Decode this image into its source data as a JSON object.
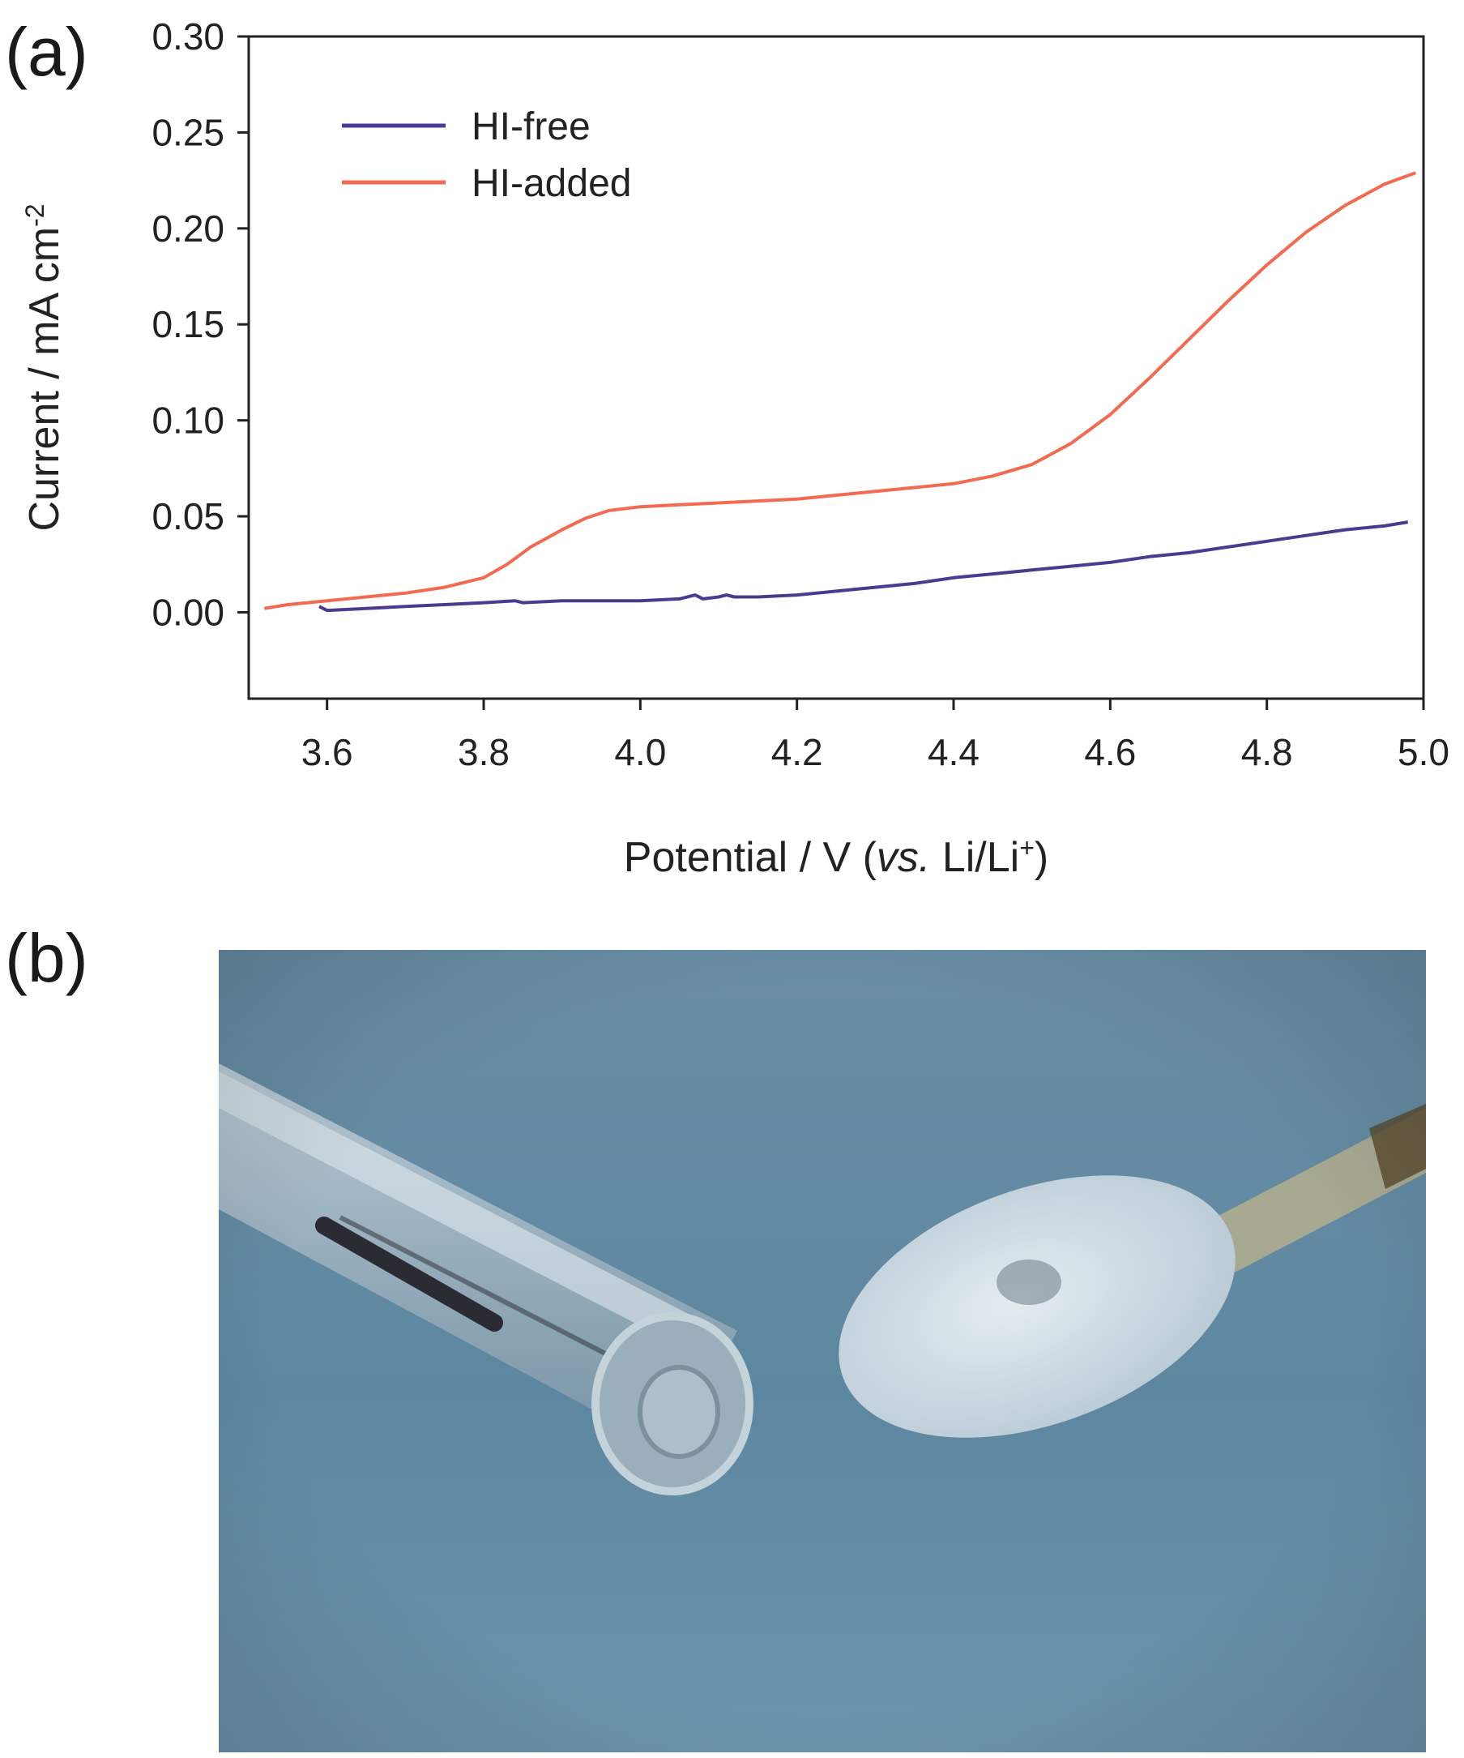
{
  "panels": {
    "a_label": "(a)",
    "b_label": "(b)"
  },
  "chart_data": {
    "type": "line",
    "xlabel_parts": [
      "Potential / V (",
      "vs.",
      " Li/Li",
      "+",
      ")"
    ],
    "ylabel_parts": [
      "Current / mA cm",
      "-2"
    ],
    "xlim": [
      3.5,
      5.0
    ],
    "ylim": [
      -0.045,
      0.3
    ],
    "x_ticks": [
      "3.6",
      "3.8",
      "4.0",
      "4.2",
      "4.4",
      "4.6",
      "4.8",
      "5.0"
    ],
    "x_tick_values": [
      3.6,
      3.8,
      4.0,
      4.2,
      4.4,
      4.6,
      4.8,
      5.0
    ],
    "y_ticks": [
      "0.00",
      "0.05",
      "0.10",
      "0.15",
      "0.20",
      "0.25",
      "0.30"
    ],
    "y_tick_values": [
      0.0,
      0.05,
      0.1,
      0.15,
      0.2,
      0.25,
      0.3
    ],
    "grid": false,
    "legend_position": "top-left",
    "series": [
      {
        "name": "HI-free",
        "color": "#4b3a8f",
        "x": [
          3.59,
          3.6,
          3.65,
          3.7,
          3.75,
          3.8,
          3.84,
          3.85,
          3.9,
          3.95,
          4.0,
          4.05,
          4.07,
          4.08,
          4.1,
          4.11,
          4.12,
          4.15,
          4.2,
          4.25,
          4.3,
          4.35,
          4.4,
          4.45,
          4.5,
          4.55,
          4.6,
          4.65,
          4.7,
          4.75,
          4.8,
          4.85,
          4.9,
          4.95,
          4.98
        ],
        "y": [
          0.003,
          0.001,
          0.002,
          0.003,
          0.004,
          0.005,
          0.006,
          0.005,
          0.006,
          0.006,
          0.006,
          0.007,
          0.009,
          0.007,
          0.008,
          0.009,
          0.008,
          0.008,
          0.009,
          0.011,
          0.013,
          0.015,
          0.018,
          0.02,
          0.022,
          0.024,
          0.026,
          0.029,
          0.031,
          0.034,
          0.037,
          0.04,
          0.043,
          0.045,
          0.047
        ]
      },
      {
        "name": "HI-added",
        "color": "#f26a50",
        "x": [
          3.52,
          3.55,
          3.6,
          3.65,
          3.7,
          3.75,
          3.8,
          3.83,
          3.86,
          3.9,
          3.93,
          3.96,
          4.0,
          4.05,
          4.1,
          4.15,
          4.2,
          4.25,
          4.3,
          4.35,
          4.4,
          4.45,
          4.5,
          4.55,
          4.6,
          4.65,
          4.7,
          4.75,
          4.8,
          4.85,
          4.9,
          4.95,
          4.99
        ],
        "y": [
          0.002,
          0.004,
          0.006,
          0.008,
          0.01,
          0.013,
          0.018,
          0.025,
          0.034,
          0.043,
          0.049,
          0.053,
          0.055,
          0.056,
          0.057,
          0.058,
          0.059,
          0.061,
          0.063,
          0.065,
          0.067,
          0.071,
          0.077,
          0.088,
          0.103,
          0.122,
          0.142,
          0.162,
          0.181,
          0.198,
          0.212,
          0.223,
          0.229
        ]
      }
    ]
  },
  "photo": {
    "background_color": "#5d87a0",
    "objects": [
      "glass-tube-electrode",
      "cotton-swab"
    ]
  }
}
